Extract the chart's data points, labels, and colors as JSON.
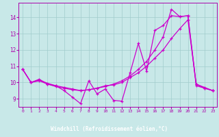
{
  "xlabel": "Windchill (Refroidissement éolien,°C)",
  "background_color": "#c8e8e8",
  "plot_bg_color": "#c8e8e8",
  "label_bg_color": "#880088",
  "label_fg_color": "#ffffff",
  "line_color": "#cc00cc",
  "grid_color": "#a0cccc",
  "axis_color": "#aa00aa",
  "xlim_min": -0.5,
  "xlim_max": 23.5,
  "ylim_min": 8.5,
  "ylim_max": 14.9,
  "yticks": [
    9,
    10,
    11,
    12,
    13,
    14
  ],
  "xticks": [
    0,
    1,
    2,
    3,
    4,
    5,
    6,
    7,
    8,
    9,
    10,
    11,
    12,
    13,
    14,
    15,
    16,
    17,
    18,
    19,
    20,
    21,
    22,
    23
  ],
  "series1_x": [
    0,
    1,
    2,
    3,
    4,
    5,
    6,
    7,
    8,
    9,
    10,
    11,
    12,
    13,
    14,
    15,
    16,
    17,
    18,
    19,
    20,
    21,
    22,
    23
  ],
  "series1_y": [
    10.8,
    10.0,
    10.2,
    9.9,
    9.8,
    9.5,
    9.1,
    8.7,
    10.1,
    9.3,
    9.6,
    8.9,
    8.85,
    10.6,
    12.4,
    10.7,
    13.2,
    13.5,
    14.1,
    14.05,
    14.1,
    9.8,
    9.65,
    9.5
  ],
  "series2_x": [
    0,
    1,
    2,
    3,
    4,
    5,
    6,
    7,
    8,
    9,
    10,
    11,
    12,
    13,
    14,
    15,
    16,
    17,
    18,
    19,
    20,
    21,
    22,
    23
  ],
  "series2_y": [
    10.8,
    10.0,
    10.1,
    9.9,
    9.75,
    9.65,
    9.55,
    9.5,
    9.55,
    9.65,
    9.8,
    9.85,
    10.0,
    10.3,
    10.6,
    11.0,
    11.5,
    12.0,
    12.7,
    13.3,
    13.85,
    9.9,
    9.65,
    9.5
  ],
  "series3_x": [
    0,
    1,
    2,
    3,
    4,
    5,
    6,
    7,
    8,
    9,
    10,
    11,
    12,
    13,
    14,
    15,
    16,
    17,
    18,
    19,
    20,
    21,
    22,
    23
  ],
  "series3_y": [
    10.8,
    10.0,
    10.15,
    9.95,
    9.8,
    9.7,
    9.6,
    9.5,
    9.55,
    9.65,
    9.75,
    9.9,
    10.1,
    10.4,
    10.8,
    11.3,
    12.0,
    12.8,
    14.5,
    14.05,
    14.1,
    9.9,
    9.7,
    9.5
  ]
}
